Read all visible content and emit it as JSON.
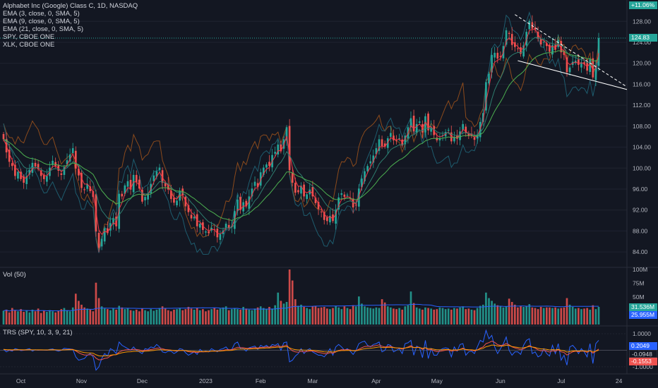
{
  "legend": {
    "symbol": "Alphabet Inc (Google) Class C, 1D, NASDAQ",
    "ema3": "EMA (3, close, 0, SMA, 5)",
    "ema9": "EMA (9, close, 0, SMA, 5)",
    "ema21": "EMA (21, close, 0, SMA, 5)",
    "spy": "SPY, CBOE ONE",
    "xlk": "XLK, CBOE ONE"
  },
  "vol_label": "Vol (50)",
  "trs_label": "TRS (SPY, 10, 3, 9, 21)",
  "price_axis": [
    "128.00",
    "124.00",
    "120.00",
    "116.00",
    "112.00",
    "108.00",
    "104.00",
    "100.00",
    "96.00",
    "92.00",
    "88.00",
    "84.00"
  ],
  "vol_axis": [
    "100M",
    "75M",
    "50M"
  ],
  "trs_axis": [
    "1.0000",
    "-1.0000"
  ],
  "tags": {
    "price": "124.83",
    "top": "+11.06%",
    "vol1": "31.536M",
    "vol2": "25.955M",
    "trs1": "0.2049",
    "trs2": "-0.0948",
    "trs3": "-0.1553"
  },
  "time_axis": [
    "Oct",
    "Nov",
    "Dec",
    "2023",
    "Feb",
    "Mar",
    "Apr",
    "May",
    "Jun",
    "Jul",
    "24"
  ],
  "colors": {
    "up": "#26a69a",
    "down": "#ef5350",
    "ema3": "#f23645",
    "ema9": "#2e7d6f",
    "ema21": "#4caf50",
    "spy": "#8b4a1c",
    "xlk": "#1e5c6e",
    "price_tag": "#26a69a",
    "volume_ma": "#2962ff"
  },
  "chart_data": {
    "type": "candlestick",
    "ylim": [
      82,
      131
    ],
    "annotations": [
      "dashed descending trendline",
      "solid descending trendline",
      "dotted last-price line at 124.83"
    ],
    "close": [
      105.5,
      103.0,
      101.2,
      100.4,
      98.5,
      99.3,
      97.9,
      97.2,
      98.5,
      99.6,
      101.0,
      100.3,
      99.8,
      98.5,
      97.9,
      98.5,
      100.1,
      101.4,
      100.4,
      99.5,
      98.7,
      100.2,
      101.5,
      102.6,
      103.8,
      99.9,
      98.6,
      96.2,
      95.8,
      97.0,
      95.6,
      94.5,
      87.9,
      84.8,
      86.5,
      88.5,
      87.6,
      89.5,
      90.5,
      88.9,
      95.1,
      94.6,
      96.7,
      97.5,
      95.9,
      98.7,
      97.3,
      96.1,
      93.6,
      94.5,
      95.2,
      97.0,
      98.6,
      99.4,
      100.1,
      97.2,
      96.5,
      95.9,
      94.1,
      93.4,
      93.8,
      95.6,
      94.8,
      92.7,
      91.6,
      90.4,
      90.7,
      88.9,
      89.4,
      88.2,
      87.9,
      87.6,
      88.6,
      88.2,
      86.8,
      87.4,
      88.1,
      89.4,
      88.5,
      88.9,
      91.8,
      94.0,
      92.0,
      93.5,
      92.7,
      94.6,
      96.1,
      97.4,
      96.4,
      99.2,
      100.1,
      100.7,
      100.4,
      102.5,
      103.1,
      104.5,
      103.2,
      105.5,
      107.8,
      99.6,
      97.2,
      95.3,
      95.4,
      96.6,
      94.6,
      95.0,
      95.9,
      94.6,
      93.3,
      92.2,
      91.6,
      90.1,
      89.9,
      90.9,
      89.9,
      92.1,
      94.4,
      95.2,
      94.5,
      94.9,
      94.2,
      92.5,
      92.9,
      96.1,
      98.0,
      99.4,
      100.4,
      101.3,
      102.4,
      103.8,
      105.5,
      104.2,
      104.1,
      105.7,
      106.7,
      105.3,
      105.2,
      105.7,
      104.3,
      106.2,
      107.8,
      109.5,
      107.0,
      108.4,
      108.9,
      106.8,
      109.9,
      107.2,
      107.8,
      106.3,
      105.3,
      105.7,
      106.3,
      106.9,
      107.3,
      105.1,
      105.8,
      105.6,
      107.0,
      108.4,
      106.7,
      106.1,
      106.1,
      105.4,
      106.4,
      108.8,
      110.5,
      116.4,
      118.0,
      121.6,
      122.0,
      120.9,
      121.2,
      123.3,
      126.3,
      125.6,
      123.5,
      123.1,
      122.8,
      121.8,
      123.4,
      126.0,
      128.1,
      126.6,
      126.5,
      124.7,
      123.6,
      124.1,
      123.3,
      122.2,
      123.5,
      122.6,
      124.5,
      122.1,
      121.6,
      118.3,
      119.2,
      120.3,
      120.5,
      119.7,
      120.2,
      119.8,
      118.6,
      120.7,
      117.3,
      119.5,
      124.8
    ],
    "volume_millions": [
      25,
      27,
      22,
      30,
      26,
      24,
      28,
      23,
      25,
      22,
      27,
      24,
      29,
      21,
      25,
      23,
      26,
      24,
      22,
      25,
      28,
      30,
      26,
      24,
      31,
      56,
      43,
      36,
      31,
      29,
      27,
      24,
      76,
      48,
      33,
      29,
      28,
      26,
      30,
      27,
      34,
      31,
      28,
      30,
      26,
      25,
      27,
      24,
      29,
      26,
      24,
      28,
      25,
      27,
      30,
      33,
      29,
      26,
      24,
      27,
      28,
      30,
      26,
      28,
      32,
      29,
      27,
      30,
      26,
      28,
      24,
      26,
      28,
      30,
      27,
      29,
      31,
      33,
      26,
      28,
      30,
      28,
      27,
      32,
      29,
      27,
      26,
      29,
      31,
      33,
      30,
      28,
      32,
      29,
      35,
      58,
      43,
      38,
      41,
      100,
      80,
      46,
      34,
      36,
      32,
      30,
      28,
      33,
      34,
      30,
      31,
      32,
      29,
      28,
      30,
      34,
      31,
      28,
      33,
      30,
      28,
      35,
      33,
      51,
      38,
      33,
      31,
      30,
      29,
      31,
      30,
      46,
      40,
      33,
      31,
      29,
      28,
      30,
      27,
      33,
      35,
      60,
      39,
      31,
      29,
      27,
      31,
      30,
      29,
      27,
      28,
      31,
      30,
      28,
      29,
      27,
      30,
      29,
      31,
      33,
      28,
      29,
      27,
      26,
      30,
      34,
      36,
      58,
      48,
      43,
      38,
      35,
      33,
      31,
      33,
      47,
      41,
      36,
      31,
      34,
      32,
      34,
      37,
      31,
      30,
      28,
      32,
      30,
      31,
      31,
      30,
      31,
      29,
      30,
      31,
      48,
      36,
      32,
      29,
      30,
      28,
      29,
      30,
      27,
      35,
      28,
      32
    ],
    "trs": [
      0.05,
      -0.1,
      0.0,
      -0.05,
      0.1,
      0.05,
      -0.02,
      0.0,
      0.05,
      0.1,
      -0.05,
      0.03,
      0.0,
      0.02,
      0.01,
      0.0,
      0.05,
      0.08,
      0.0,
      -0.05,
      0.0,
      0.12,
      0.1,
      0.08,
      0.05,
      -0.4,
      -0.6,
      -0.55,
      -0.5,
      -0.3,
      -0.2,
      -0.4,
      -1.2,
      -1.0,
      -0.5,
      -0.2,
      -0.35,
      0.1,
      0.0,
      -0.2,
      0.5,
      0.3,
      0.2,
      0.1,
      0.0,
      0.2,
      0.0,
      -0.1,
      -0.2,
      0.1,
      0.05,
      0.2,
      0.15,
      0.35,
      0.2,
      -0.1,
      -0.15,
      -0.05,
      -0.05,
      -0.2,
      -0.1,
      0.1,
      0.05,
      -0.15,
      -0.3,
      -0.2,
      -0.1,
      -0.25,
      0.05,
      -0.1,
      -0.05,
      -0.1,
      0.1,
      0.0,
      -0.1,
      0.05,
      0.1,
      0.2,
      0.0,
      0.05,
      0.4,
      0.5,
      0.1,
      0.1,
      -0.05,
      0.15,
      0.2,
      0.25,
      0.05,
      0.3,
      0.2,
      0.3,
      0.15,
      0.35,
      0.3,
      0.4,
      0.0,
      0.45,
      0.5,
      -0.7,
      -0.6,
      -0.35,
      -0.2,
      0.1,
      -0.2,
      0.0,
      0.1,
      -0.1,
      -0.2,
      -0.3,
      -0.3,
      -0.4,
      -0.2,
      0.1,
      -0.3,
      0.2,
      0.35,
      0.2,
      0.0,
      0.1,
      -0.05,
      -0.25,
      0.0,
      0.4,
      0.5,
      0.55,
      0.3,
      0.2,
      0.35,
      0.4,
      0.5,
      -0.1,
      0.0,
      0.35,
      0.3,
      -0.1,
      0.0,
      0.1,
      -0.2,
      0.4,
      0.45,
      0.6,
      -0.3,
      0.25,
      0.15,
      -0.45,
      0.6,
      -0.5,
      0.1,
      -0.3,
      -0.3,
      0.0,
      0.1,
      0.15,
      0.1,
      -0.4,
      0.2,
      -0.05,
      0.35,
      0.4,
      -0.3,
      -0.1,
      -0.05,
      -0.2,
      0.2,
      0.6,
      0.5,
      1.2,
      0.7,
      0.9,
      0.2,
      -0.2,
      0.1,
      0.4,
      0.8,
      0.0,
      -0.3,
      -0.1,
      -0.1,
      -0.25,
      0.3,
      0.6,
      0.7,
      -0.2,
      -0.1,
      -0.4,
      -0.3,
      0.1,
      -0.2,
      -0.35,
      0.3,
      -0.2,
      0.4,
      -0.6,
      -0.3,
      -0.9,
      0.2,
      0.3,
      0.1,
      -0.2,
      0.1,
      -0.1,
      -0.4,
      0.4,
      -0.8,
      0.4,
      0.6
    ]
  }
}
